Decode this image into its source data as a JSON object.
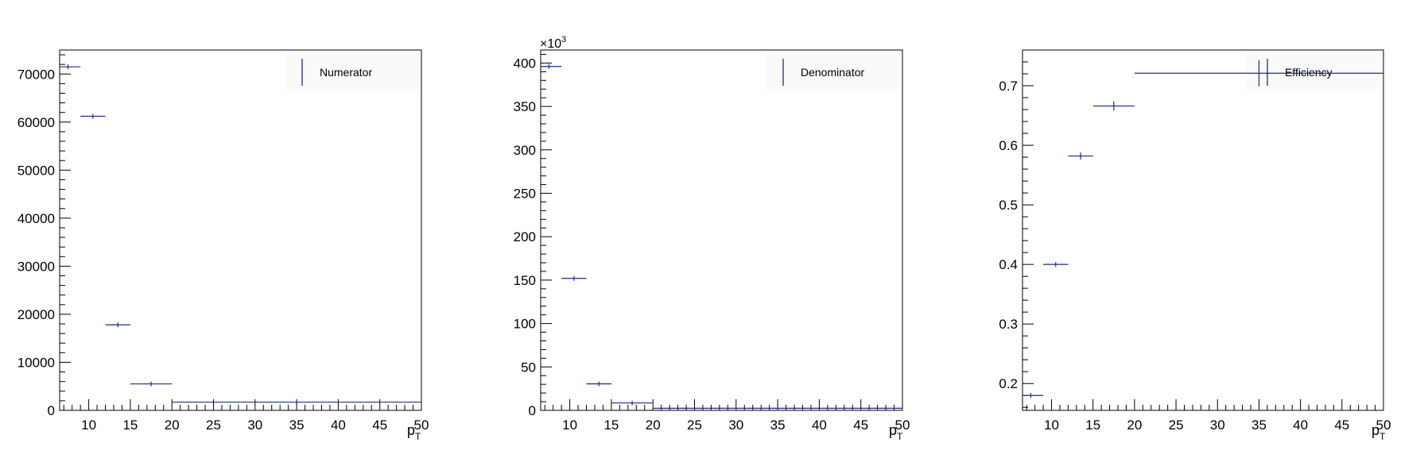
{
  "colors": {
    "marker": "#1f2a8a",
    "axis": "#000000",
    "frame": "#000000",
    "background": "#ffffff"
  },
  "chart_data": [
    {
      "type": "scatter",
      "style": "histogram-points-with-x-bin-error-bars",
      "legend": "Numerator",
      "legend_position": "top-right",
      "xlabel_main": "p",
      "xlabel_sub": "T",
      "x_exponent_label": "",
      "xlim": [
        6.5,
        50
      ],
      "ylim": [
        0,
        75000
      ],
      "xticks": [
        "10",
        "15",
        "20",
        "25",
        "30",
        "35",
        "40",
        "45",
        "50"
      ],
      "yticks": [
        "0",
        "10000",
        "20000",
        "30000",
        "40000",
        "50000",
        "60000",
        "70000"
      ],
      "ytick_values": [
        0,
        10000,
        20000,
        30000,
        40000,
        50000,
        60000,
        70000
      ],
      "points": [
        {
          "x": 7.5,
          "xlow": 6.5,
          "xhigh": 9,
          "y": 71500,
          "yerr": 270
        },
        {
          "x": 10.5,
          "xlow": 9,
          "xhigh": 12,
          "y": 61200,
          "yerr": 250
        },
        {
          "x": 13.5,
          "xlow": 12,
          "xhigh": 15,
          "y": 17800,
          "yerr": 135
        },
        {
          "x": 17.5,
          "xlow": 15,
          "xhigh": 20,
          "y": 5500,
          "yerr": 75
        },
        {
          "x": 35,
          "xlow": 20,
          "xhigh": 50,
          "y": 1700,
          "yerr": 40
        }
      ]
    },
    {
      "type": "scatter",
      "style": "histogram-points-with-x-bin-error-bars",
      "legend": "Denominator",
      "legend_position": "top-right",
      "xlabel_main": "p",
      "xlabel_sub": "T",
      "x_exponent_label": "",
      "y_multiplier_base": "×10",
      "y_multiplier_exp": "3",
      "xlim": [
        6.5,
        50
      ],
      "ylim": [
        0,
        415
      ],
      "xticks": [
        "10",
        "15",
        "20",
        "25",
        "30",
        "35",
        "40",
        "45",
        "50"
      ],
      "yticks": [
        "0",
        "50",
        "100",
        "150",
        "200",
        "250",
        "300",
        "350",
        "400"
      ],
      "ytick_values": [
        0,
        50,
        100,
        150,
        200,
        250,
        300,
        350,
        400
      ],
      "points": [
        {
          "x": 7.5,
          "xlow": 6.5,
          "xhigh": 9,
          "y": 396,
          "yerr": 0.6
        },
        {
          "x": 10.5,
          "xlow": 9,
          "xhigh": 12,
          "y": 152,
          "yerr": 0.4
        },
        {
          "x": 13.5,
          "xlow": 12,
          "xhigh": 15,
          "y": 30.5,
          "yerr": 0.2
        },
        {
          "x": 17.5,
          "xlow": 15,
          "xhigh": 20,
          "y": 8.5,
          "yerr": 0.1
        },
        {
          "x": 35,
          "xlow": 20,
          "xhigh": 50,
          "y": 2.4,
          "yerr": 0.05
        }
      ]
    },
    {
      "type": "scatter",
      "style": "histogram-points-with-x-bin-error-bars",
      "legend": "Efficiency",
      "legend_position": "top-right",
      "xlabel_main": "p",
      "xlabel_sub": "T",
      "x_exponent_label": "",
      "xlim": [
        6.5,
        50
      ],
      "ylim": [
        0.155,
        0.76
      ],
      "xticks": [
        "10",
        "15",
        "20",
        "25",
        "30",
        "35",
        "40",
        "45",
        "50"
      ],
      "yticks": [
        "0.2",
        "0.3",
        "0.4",
        "0.5",
        "0.6",
        "0.7"
      ],
      "ytick_values": [
        0.2,
        0.3,
        0.4,
        0.5,
        0.6,
        0.7
      ],
      "points": [
        {
          "x": 7.5,
          "xlow": 6.5,
          "xhigh": 9,
          "y": 0.18,
          "yerr": 0.001
        },
        {
          "x": 10.5,
          "xlow": 9,
          "xhigh": 12,
          "y": 0.4,
          "yerr": 0.002
        },
        {
          "x": 13.5,
          "xlow": 12,
          "xhigh": 15,
          "y": 0.582,
          "yerr": 0.006
        },
        {
          "x": 17.5,
          "xlow": 15,
          "xhigh": 20,
          "y": 0.666,
          "yerr": 0.008
        },
        {
          "x": 35,
          "xlow": 20,
          "xhigh": 50,
          "y": 0.721,
          "yerr": 0.022
        }
      ]
    }
  ]
}
